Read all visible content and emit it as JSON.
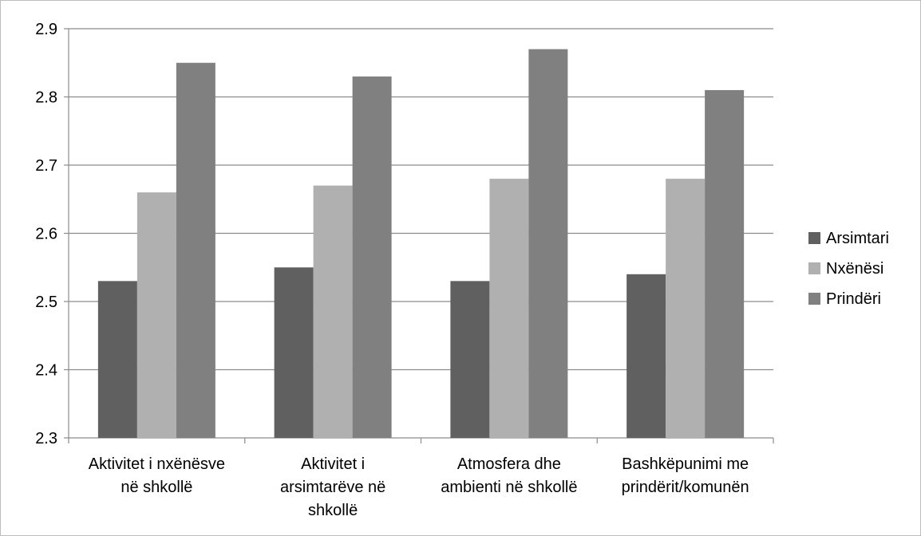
{
  "chart_data": {
    "type": "bar",
    "categories": [
      [
        "Aktivitet i nxënësve",
        "në shkollë"
      ],
      [
        "Aktivitet i",
        "arsimtarëve në",
        "shkollë"
      ],
      [
        "Atmosfera dhe",
        "ambienti në shkollë"
      ],
      [
        "Bashkëpunimi me",
        "prindërit/komunën"
      ]
    ],
    "series": [
      {
        "name": "Arsimtari",
        "values": [
          2.53,
          2.55,
          2.53,
          2.54
        ],
        "color": "#606060"
      },
      {
        "name": "Nxënësi",
        "values": [
          2.66,
          2.67,
          2.68,
          2.68
        ],
        "color": "#b0b0b0"
      },
      {
        "name": "Prindëri",
        "values": [
          2.85,
          2.83,
          2.87,
          2.81
        ],
        "color": "#808080"
      }
    ],
    "y_ticks": [
      "2.3",
      "2.4",
      "2.5",
      "2.6",
      "2.7",
      "2.8",
      "2.9"
    ],
    "ylim": [
      2.3,
      2.9
    ],
    "grid": true,
    "legend_position": "right"
  }
}
